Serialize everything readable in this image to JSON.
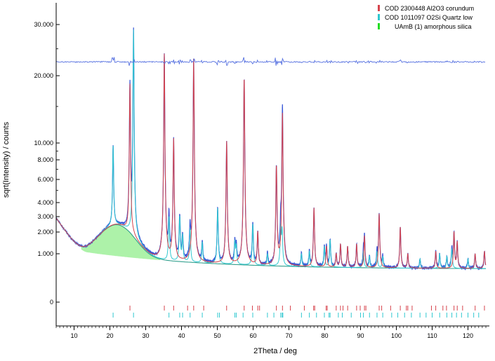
{
  "chart_data": {
    "type": "line",
    "title": "",
    "xlabel": "2Theta / deg",
    "ylabel": "sqrt(Intensity) / counts",
    "xlim": [
      5,
      125
    ],
    "x_ticks": [
      10,
      20,
      30,
      40,
      50,
      60,
      70,
      80,
      90,
      100,
      110,
      120
    ],
    "y_ticks": [
      {
        "label": "30.000",
        "value": 30000
      },
      {
        "label": "20.000",
        "value": 20000
      },
      {
        "label": "10.000",
        "value": 10000
      },
      {
        "label": "8.000",
        "value": 8000
      },
      {
        "label": "6.000",
        "value": 6000
      },
      {
        "label": "4.000",
        "value": 4000
      },
      {
        "label": "3.000",
        "value": 3000
      },
      {
        "label": "2.000",
        "value": 2000
      },
      {
        "label": "1.000",
        "value": 1000
      },
      {
        "label": "0",
        "value": 0
      }
    ],
    "difference_curve_offset": 22500,
    "background": {
      "start_2theta": 5,
      "start_counts": 2900,
      "min_2theta": 14,
      "min_counts": 1050,
      "end_2theta": 125,
      "end_counts": 480
    },
    "amorphous_hump": {
      "center_2theta": 22,
      "peak_counts": 2450,
      "width_2theta": 4.5
    },
    "legend": [
      {
        "label": "COD 2300448 Al2O3 corundum",
        "color": "#d6434c"
      },
      {
        "label": "COD 1011097 O2Si Quartz low",
        "color": "#30c8d0"
      },
      {
        "label": "UAmB (1)  amorphous silica",
        "color": "#22dd22"
      }
    ],
    "series_colors": {
      "observed": "#3a59d8",
      "background": "#2f9e8c",
      "amorphous_fill": "#9ff09a",
      "difference": "#5570e0"
    },
    "phases": [
      {
        "name": "COD 2300448 Al2O3 corundum",
        "color": "#d6434c",
        "peaks": [
          {
            "x": 25.6,
            "counts": 17500
          },
          {
            "x": 35.2,
            "counts": 24000
          },
          {
            "x": 37.8,
            "counts": 10500
          },
          {
            "x": 43.4,
            "counts": 23000
          },
          {
            "x": 52.6,
            "counts": 10200
          },
          {
            "x": 57.5,
            "counts": 19500
          },
          {
            "x": 61.3,
            "counts": 2000
          },
          {
            "x": 66.5,
            "counts": 7300
          },
          {
            "x": 68.2,
            "counts": 14000
          },
          {
            "x": 77.0,
            "counts": 3600
          },
          {
            "x": 80.5,
            "counts": 1300
          },
          {
            "x": 83.2,
            "counts": 1000
          },
          {
            "x": 84.4,
            "counts": 1400
          },
          {
            "x": 86.4,
            "counts": 1300
          },
          {
            "x": 88.9,
            "counts": 1400
          },
          {
            "x": 91.1,
            "counts": 1800
          },
          {
            "x": 95.2,
            "counts": 3200
          },
          {
            "x": 101.1,
            "counts": 2300
          },
          {
            "x": 103.2,
            "counts": 1000
          },
          {
            "x": 111.0,
            "counts": 1100
          },
          {
            "x": 116.1,
            "counts": 2000
          },
          {
            "x": 117.0,
            "counts": 1500
          },
          {
            "x": 122.0,
            "counts": 1000
          },
          {
            "x": 124.6,
            "counts": 1100
          }
        ],
        "tick_positions": [
          25.6,
          35.2,
          37.8,
          41.7,
          43.4,
          46.2,
          52.6,
          57.5,
          59.8,
          61.3,
          61.8,
          66.5,
          68.2,
          70.4,
          74.3,
          76.9,
          77.2,
          80.4,
          80.7,
          83.2,
          84.4,
          85.1,
          86.4,
          88.9,
          89.9,
          91.1,
          91.5,
          95.2,
          95.9,
          98.4,
          101.1,
          102.8,
          103.2,
          104.4,
          109.8,
          111.0,
          113.0,
          114.0,
          116.1,
          117.0,
          118.5,
          122.0,
          124.6
        ]
      },
      {
        "name": "COD 1011097 O2Si Quartz low",
        "color": "#30c8d0",
        "peaks": [
          {
            "x": 20.9,
            "counts": 8200
          },
          {
            "x": 26.6,
            "counts": 28000
          },
          {
            "x": 36.5,
            "counts": 3000
          },
          {
            "x": 39.5,
            "counts": 3000
          },
          {
            "x": 40.3,
            "counts": 1800
          },
          {
            "x": 42.4,
            "counts": 2200
          },
          {
            "x": 45.8,
            "counts": 1500
          },
          {
            "x": 50.1,
            "counts": 3600
          },
          {
            "x": 54.9,
            "counts": 1500
          },
          {
            "x": 55.3,
            "counts": 1300
          },
          {
            "x": 59.9,
            "counts": 2500
          },
          {
            "x": 64.0,
            "counts": 1000
          },
          {
            "x": 67.7,
            "counts": 2300
          },
          {
            "x": 68.1,
            "counts": 2100
          },
          {
            "x": 73.5,
            "counts": 1000
          },
          {
            "x": 75.7,
            "counts": 1100
          },
          {
            "x": 79.9,
            "counts": 1300
          },
          {
            "x": 81.5,
            "counts": 1600
          },
          {
            "x": 90.8,
            "counts": 1100
          },
          {
            "x": 92.5,
            "counts": 900
          },
          {
            "x": 94.6,
            "counts": 1100
          },
          {
            "x": 96.2,
            "counts": 900
          },
          {
            "x": 106.6,
            "counts": 800
          },
          {
            "x": 112.1,
            "counts": 1000
          },
          {
            "x": 114.1,
            "counts": 900
          },
          {
            "x": 115.5,
            "counts": 1200
          },
          {
            "x": 120.0,
            "counts": 800
          }
        ],
        "tick_positions": [
          20.9,
          26.6,
          36.5,
          39.5,
          40.3,
          42.4,
          45.8,
          50.1,
          50.6,
          54.9,
          55.3,
          57.2,
          59.9,
          64.0,
          65.8,
          67.7,
          68.1,
          68.3,
          73.5,
          75.7,
          77.7,
          79.9,
          81.2,
          81.5,
          83.8,
          84.9,
          87.4,
          90.0,
          90.8,
          92.5,
          94.6,
          96.2,
          98.7,
          100.4,
          102.3,
          104.2,
          106.6,
          108.3,
          110.0,
          112.1,
          114.1,
          115.5,
          116.8,
          118.2,
          120.0,
          121.6,
          123.0
        ]
      }
    ]
  }
}
